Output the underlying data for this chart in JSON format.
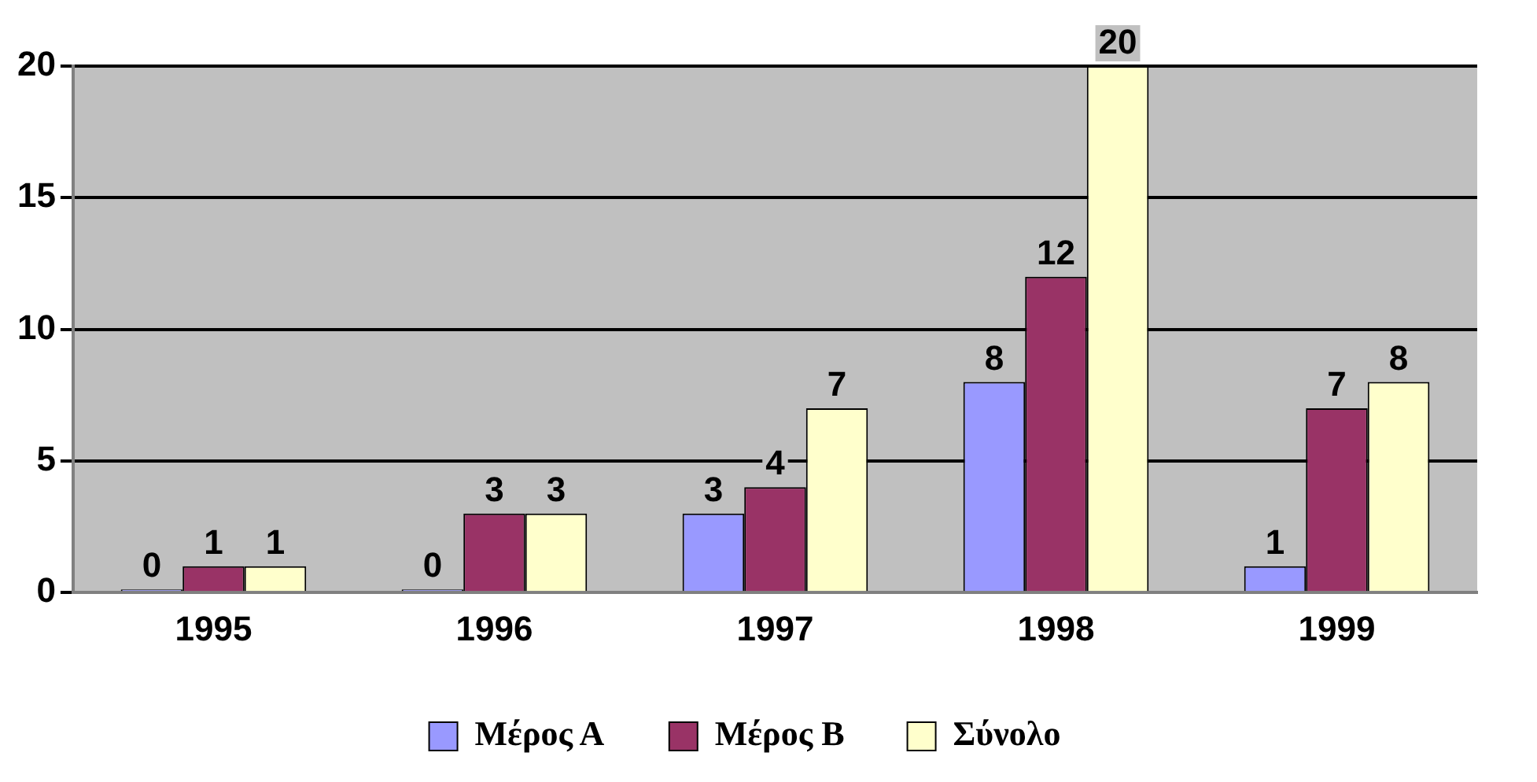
{
  "chart_data": {
    "type": "bar",
    "categories": [
      "1995",
      "1996",
      "1997",
      "1998",
      "1999"
    ],
    "series": [
      {
        "name": "Μέρος Α",
        "color": "#9999ff",
        "values": [
          0,
          0,
          3,
          8,
          1
        ]
      },
      {
        "name": "Μέρος Β",
        "color": "#993366",
        "values": [
          1,
          3,
          4,
          12,
          7
        ]
      },
      {
        "name": "Σύνολο",
        "color": "#ffffcc",
        "values": [
          1,
          3,
          7,
          20,
          8
        ]
      }
    ],
    "ylim": [
      0,
      20
    ],
    "yticks": [
      0,
      5,
      10,
      15,
      20
    ],
    "grid": "y",
    "legend": "bottom",
    "data_labels": true
  }
}
